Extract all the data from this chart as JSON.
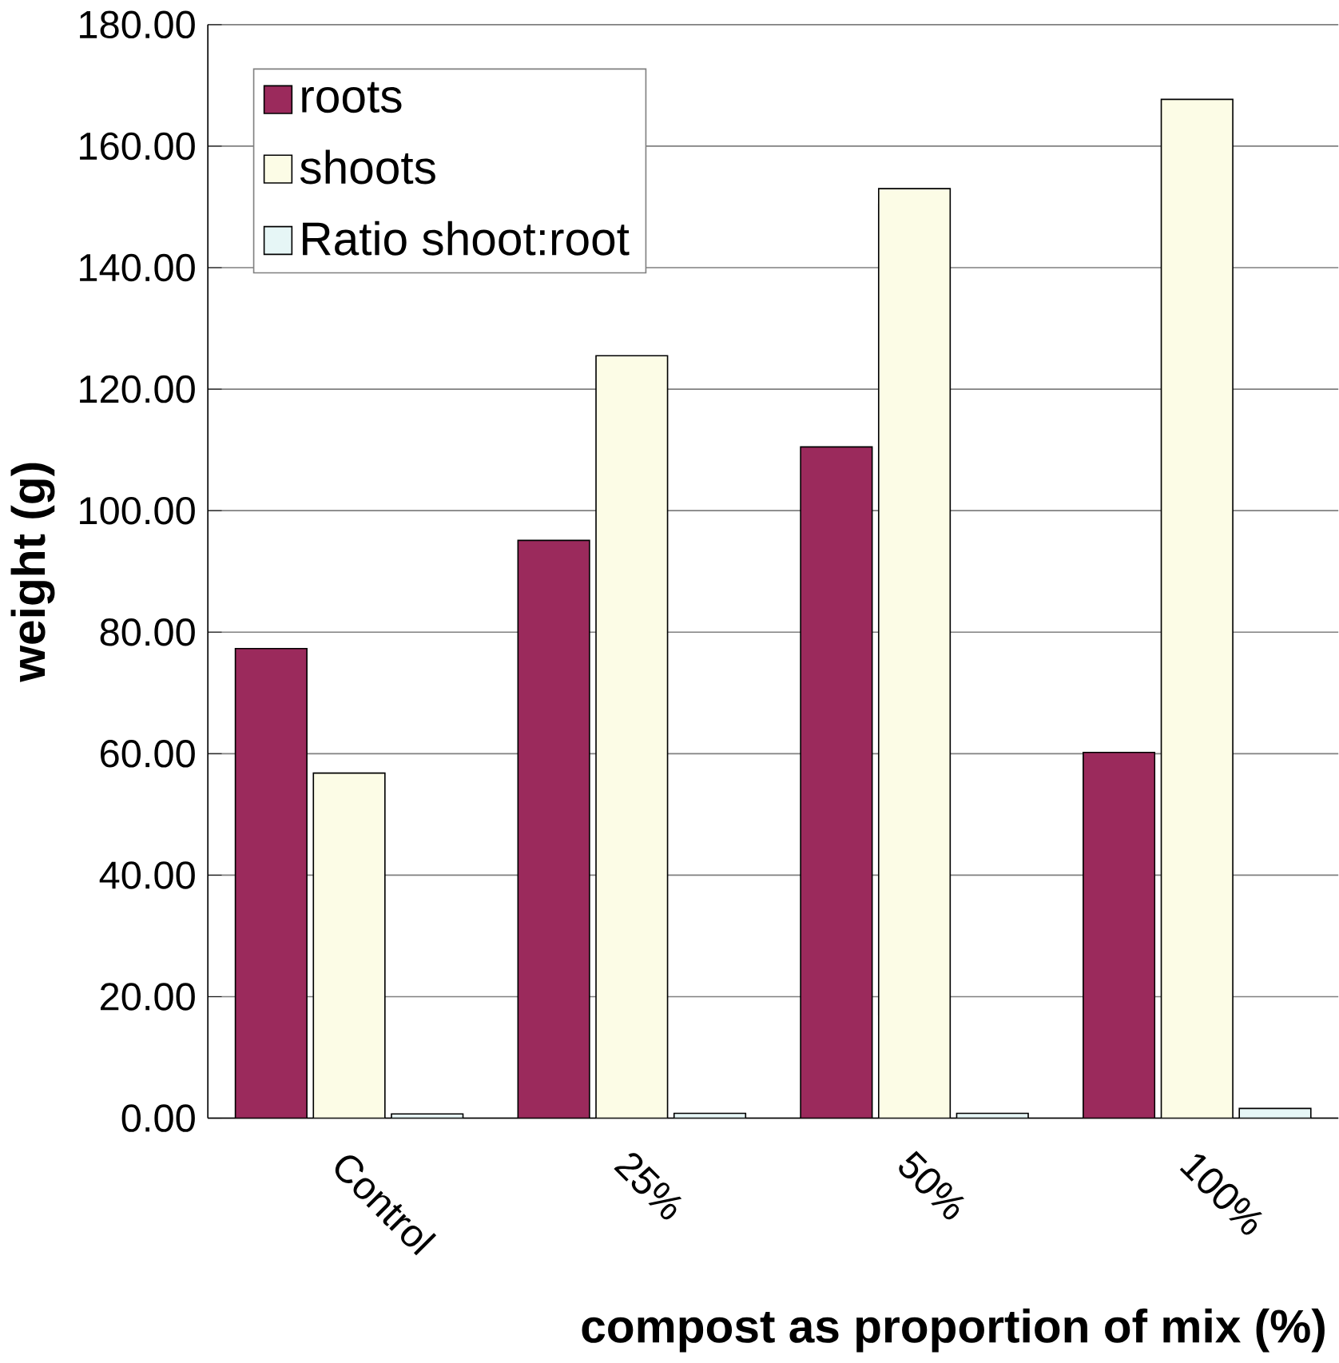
{
  "chart_data": {
    "type": "bar",
    "xlabel": "compost as proportion of mix (%)",
    "ylabel": "weight (g)",
    "categories": [
      "Control",
      "25%",
      "50%",
      "100%"
    ],
    "series": [
      {
        "name": "roots",
        "color": "#9b2a5c",
        "values": [
          77.3,
          95.1,
          110.5,
          60.2
        ]
      },
      {
        "name": "shoots",
        "color": "#fcfce6",
        "values": [
          56.8,
          125.5,
          153,
          167.7
        ]
      },
      {
        "name": "Ratio shoot:root",
        "color": "#e6f6f6",
        "values": [
          0.7,
          0.8,
          0.8,
          1.6
        ]
      }
    ],
    "ylim": [
      0,
      180
    ],
    "yticks": [
      {
        "value": 0,
        "label": "0.00"
      },
      {
        "value": 20,
        "label": "20.00"
      },
      {
        "value": 40,
        "label": "40.00"
      },
      {
        "value": 60,
        "label": "60.00"
      },
      {
        "value": 80,
        "label": "80.00"
      },
      {
        "value": 100,
        "label": "100.00"
      },
      {
        "value": 120,
        "label": "120.00"
      },
      {
        "value": 140,
        "label": "140.00"
      },
      {
        "value": 160,
        "label": "160.00"
      },
      {
        "value": 180,
        "label": "180.00"
      }
    ],
    "grid": "y",
    "legend": "top left"
  }
}
